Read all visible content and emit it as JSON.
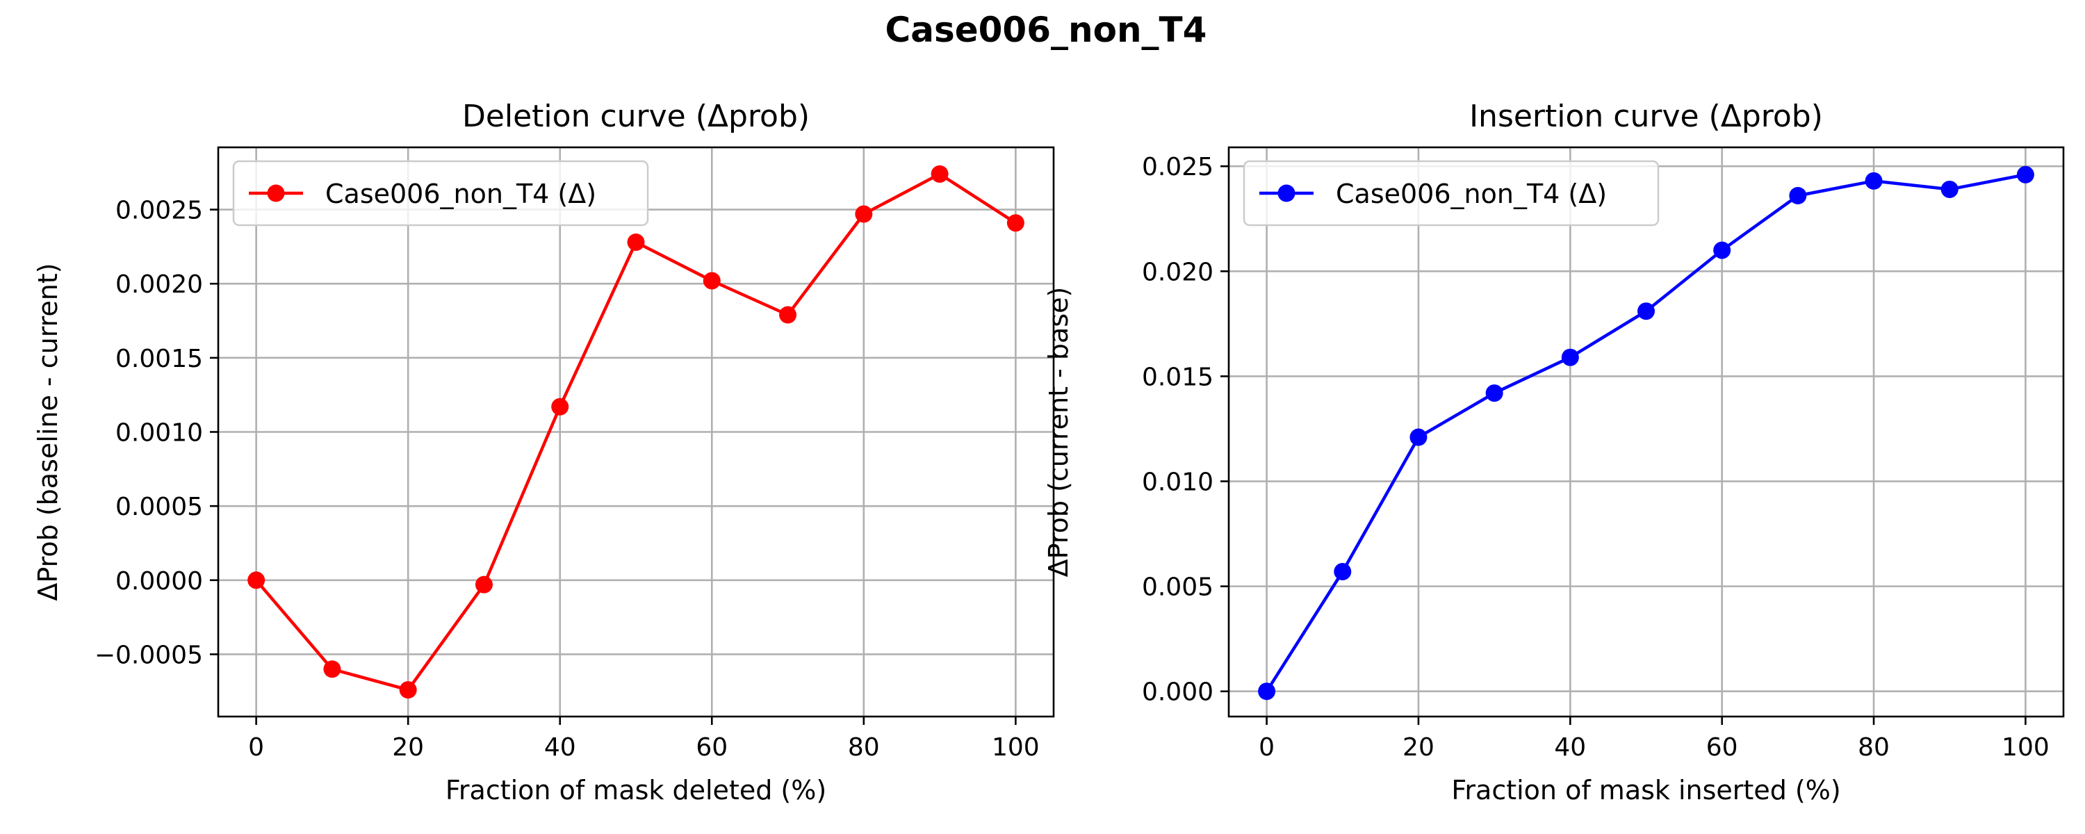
{
  "figure": {
    "title": "Case006_non_T4"
  },
  "chart_data": [
    {
      "type": "line",
      "title": "Deletion curve (Δprob)",
      "xlabel": "Fraction of mask deleted (%)",
      "ylabel": "ΔProb (baseline - current)",
      "xlim": [
        -5,
        105
      ],
      "ylim": [
        -0.00092,
        0.00292
      ],
      "xticks": [
        0,
        20,
        40,
        60,
        80,
        100
      ],
      "xtick_labels": [
        "0",
        "20",
        "40",
        "60",
        "80",
        "100"
      ],
      "yticks": [
        -0.0005,
        0.0,
        0.0005,
        0.001,
        0.0015,
        0.002,
        0.0025
      ],
      "ytick_labels": [
        "−0.0005",
        "0.0000",
        "0.0005",
        "0.0010",
        "0.0015",
        "0.0020",
        "0.0025"
      ],
      "grid": true,
      "legend": "upper left",
      "series": [
        {
          "name": "Case006_non_T4 (Δ)",
          "color": "#ff0000",
          "marker": "circle",
          "x": [
            0,
            10,
            20,
            30,
            40,
            50,
            60,
            70,
            80,
            90,
            100
          ],
          "y": [
            0.0,
            -0.0006,
            -0.00074,
            -3e-05,
            0.00117,
            0.00228,
            0.00202,
            0.00179,
            0.00247,
            0.00274,
            0.00241
          ]
        }
      ]
    },
    {
      "type": "line",
      "title": "Insertion curve (Δprob)",
      "xlabel": "Fraction of mask inserted (%)",
      "ylabel": "ΔProb (current - base)",
      "xlim": [
        -5,
        105
      ],
      "ylim": [
        -0.0012,
        0.0259
      ],
      "xticks": [
        0,
        20,
        40,
        60,
        80,
        100
      ],
      "xtick_labels": [
        "0",
        "20",
        "40",
        "60",
        "80",
        "100"
      ],
      "yticks": [
        0.0,
        0.005,
        0.01,
        0.015,
        0.02,
        0.025
      ],
      "ytick_labels": [
        "0.000",
        "0.005",
        "0.010",
        "0.015",
        "0.020",
        "0.025"
      ],
      "grid": true,
      "legend": "upper left",
      "series": [
        {
          "name": "Case006_non_T4 (Δ)",
          "color": "#0000ff",
          "marker": "circle",
          "x": [
            0,
            10,
            20,
            30,
            40,
            50,
            60,
            70,
            80,
            90,
            100
          ],
          "y": [
            0.0,
            0.0057,
            0.0121,
            0.0142,
            0.0159,
            0.0181,
            0.021,
            0.0236,
            0.0243,
            0.0239,
            0.0246
          ]
        }
      ]
    }
  ]
}
